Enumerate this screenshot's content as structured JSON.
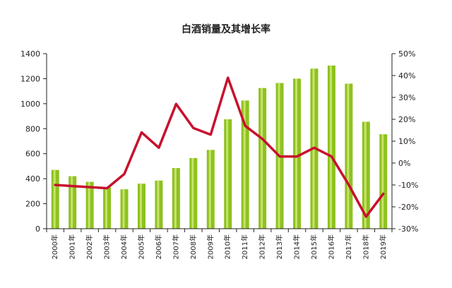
{
  "chart_data": {
    "type": "bar",
    "title": "白酒销量及其增长率",
    "xlabel": "",
    "ylabel": "",
    "categories": [
      "2000年",
      "2001年",
      "2002年",
      "2003年",
      "2004年",
      "2005年",
      "2006年",
      "2007年",
      "2008年",
      "2009年",
      "2010年",
      "2011年",
      "2012年",
      "2013年",
      "2014年",
      "2015年",
      "2016年",
      "2017年",
      "2018年",
      "2019年"
    ],
    "series": [
      {
        "type": "bar",
        "axis": "left",
        "values": [
          470,
          420,
          375,
          330,
          315,
          360,
          385,
          485,
          565,
          630,
          875,
          1025,
          1125,
          1165,
          1200,
          1280,
          1305,
          1160,
          855,
          755
        ]
      },
      {
        "type": "line",
        "axis": "right",
        "values": [
          -10,
          -10.5,
          -11,
          -11.5,
          -5,
          14,
          7,
          27,
          16,
          13,
          39,
          17,
          11,
          3,
          3,
          7,
          3,
          -10,
          -24.5,
          -14
        ]
      }
    ],
    "ylim": [
      0,
      1400
    ],
    "yticks": [
      "0",
      "200",
      "400",
      "600",
      "800",
      "1000",
      "1200",
      "1400"
    ],
    "y2lim": [
      -30,
      50
    ],
    "y2ticks": [
      "-30%",
      "-20%",
      "-10%",
      "0%",
      "10%",
      "20%",
      "30%",
      "40%",
      "50%"
    ],
    "colors": {
      "bar": "#8dc21f",
      "bar_highlight": "#c8e26b",
      "line": "#c8102e",
      "axis": "#222222"
    },
    "grid": false,
    "legend": "none"
  }
}
